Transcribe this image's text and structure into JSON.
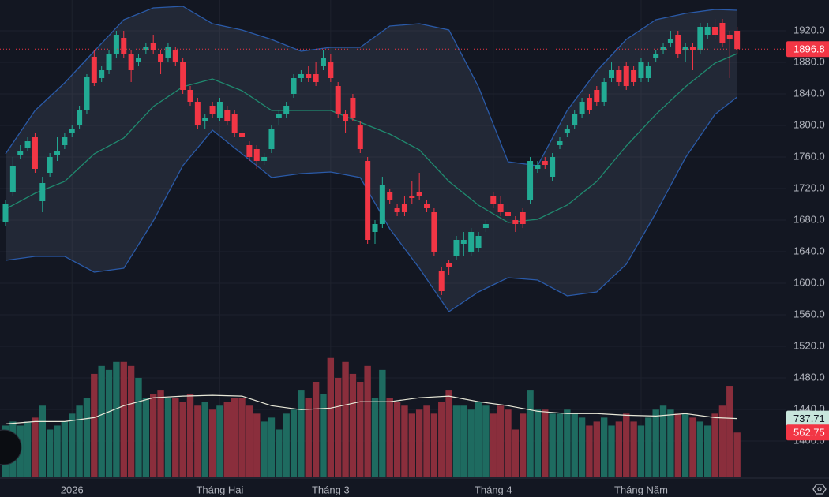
{
  "chart_data": {
    "type": "candlestick",
    "categories": [
      null,
      null,
      null,
      null,
      null,
      null,
      null,
      null,
      null,
      "2026",
      null,
      null,
      null,
      null,
      null,
      null,
      null,
      null,
      null,
      null,
      null,
      null,
      null,
      null,
      null,
      null,
      null,
      null,
      null,
      "Tháng Hai",
      null,
      null,
      null,
      null,
      null,
      null,
      null,
      null,
      null,
      null,
      null,
      null,
      null,
      null,
      "Tháng 3",
      null,
      null,
      null,
      null,
      null,
      null,
      null,
      null,
      null,
      null,
      null,
      null,
      null,
      null,
      null,
      null,
      null,
      null,
      null,
      null,
      null,
      "Tháng 4",
      null,
      null,
      null,
      null,
      null,
      null,
      null,
      null,
      null,
      null,
      null,
      null,
      null,
      null,
      null,
      null,
      null,
      null,
      null,
      "Tháng Năm",
      null,
      null,
      null,
      null,
      null,
      null,
      null,
      null,
      null,
      null,
      null,
      null,
      null
    ],
    "candles": [
      [
        1677,
        1705,
        1672,
        1701
      ],
      [
        1716,
        1760,
        1710,
        1749
      ],
      [
        1763,
        1775,
        1758,
        1768
      ],
      [
        1772,
        1785,
        1768,
        1780
      ],
      [
        1785,
        1790,
        1740,
        1745
      ],
      [
        1704,
        1735,
        1690,
        1727
      ],
      [
        1740,
        1765,
        1735,
        1760
      ],
      [
        1762,
        1785,
        1755,
        1768
      ],
      [
        1775,
        1790,
        1770,
        1785
      ],
      [
        1790,
        1800,
        1785,
        1795
      ],
      [
        1800,
        1825,
        1795,
        1820
      ],
      [
        1819,
        1865,
        1815,
        1861
      ],
      [
        1887,
        1895,
        1850,
        1854
      ],
      [
        1860,
        1875,
        1855,
        1870
      ],
      [
        1870,
        1895,
        1865,
        1890
      ],
      [
        1890,
        1920,
        1885,
        1915
      ],
      [
        1911,
        1920,
        1885,
        1891
      ],
      [
        1890,
        1895,
        1855,
        1870
      ],
      [
        1880,
        1890,
        1875,
        1885
      ],
      [
        1895,
        1905,
        1890,
        1900
      ],
      [
        1905,
        1915,
        1890,
        1895
      ],
      [
        1890,
        1895,
        1865,
        1880
      ],
      [
        1885,
        1905,
        1880,
        1900
      ],
      [
        1895,
        1900,
        1875,
        1880
      ],
      [
        1880,
        1885,
        1840,
        1845
      ],
      [
        1845,
        1850,
        1825,
        1830
      ],
      [
        1830,
        1835,
        1795,
        1800
      ],
      [
        1805,
        1815,
        1795,
        1810
      ],
      [
        1825,
        1830,
        1810,
        1815
      ],
      [
        1810,
        1835,
        1805,
        1830
      ],
      [
        1820,
        1825,
        1800,
        1805
      ],
      [
        1815,
        1820,
        1785,
        1790
      ],
      [
        1790,
        1795,
        1780,
        1785
      ],
      [
        1775,
        1780,
        1755,
        1760
      ],
      [
        1770,
        1775,
        1745,
        1755
      ],
      [
        1755,
        1765,
        1750,
        1760
      ],
      [
        1770,
        1800,
        1765,
        1795
      ],
      [
        1810,
        1820,
        1800,
        1815
      ],
      [
        1815,
        1830,
        1810,
        1825
      ],
      [
        1840,
        1865,
        1835,
        1860
      ],
      [
        1860,
        1870,
        1855,
        1865
      ],
      [
        1865,
        1875,
        1855,
        1860
      ],
      [
        1865,
        1880,
        1850,
        1855
      ],
      [
        1875,
        1895,
        1870,
        1885
      ],
      [
        1880,
        1890,
        1855,
        1860
      ],
      [
        1850,
        1855,
        1810,
        1815
      ],
      [
        1815,
        1820,
        1790,
        1805
      ],
      [
        1835,
        1840,
        1805,
        1810
      ],
      [
        1800,
        1805,
        1765,
        1770
      ],
      [
        1755,
        1760,
        1650,
        1655
      ],
      [
        1665,
        1680,
        1650,
        1675
      ],
      [
        1675,
        1735,
        1670,
        1725
      ],
      [
        1715,
        1720,
        1700,
        1705
      ],
      [
        1695,
        1700,
        1685,
        1690
      ],
      [
        1700,
        1710,
        1685,
        1690
      ],
      [
        1710,
        1730,
        1700,
        1708
      ],
      [
        1715,
        1740,
        1705,
        1710
      ],
      [
        1700,
        1705,
        1690,
        1695
      ],
      [
        1690,
        1695,
        1635,
        1640
      ],
      [
        1615,
        1620,
        1585,
        1590
      ],
      [
        1625,
        1630,
        1610,
        1620
      ],
      [
        1635,
        1660,
        1630,
        1655
      ],
      [
        1650,
        1665,
        1635,
        1655
      ],
      [
        1640,
        1670,
        1635,
        1665
      ],
      [
        1645,
        1665,
        1640,
        1660
      ],
      [
        1670,
        1680,
        1665,
        1675
      ],
      [
        1710,
        1715,
        1695,
        1700
      ],
      [
        1700,
        1710,
        1685,
        1690
      ],
      [
        1690,
        1700,
        1675,
        1685
      ],
      [
        1680,
        1685,
        1665,
        1675
      ],
      [
        1690,
        1695,
        1670,
        1675
      ],
      [
        1705,
        1760,
        1700,
        1755
      ],
      [
        1745,
        1755,
        1740,
        1750
      ],
      [
        1755,
        1760,
        1745,
        1750
      ],
      [
        1735,
        1765,
        1730,
        1760
      ],
      [
        1775,
        1785,
        1770,
        1780
      ],
      [
        1790,
        1800,
        1785,
        1795
      ],
      [
        1800,
        1820,
        1795,
        1815
      ],
      [
        1815,
        1835,
        1810,
        1830
      ],
      [
        1835,
        1840,
        1815,
        1820
      ],
      [
        1845,
        1850,
        1825,
        1830
      ],
      [
        1830,
        1860,
        1825,
        1855
      ],
      [
        1860,
        1880,
        1855,
        1870
      ],
      [
        1870,
        1875,
        1850,
        1855
      ],
      [
        1875,
        1880,
        1845,
        1850
      ],
      [
        1870,
        1875,
        1850,
        1855
      ],
      [
        1860,
        1885,
        1855,
        1880
      ],
      [
        1860,
        1880,
        1855,
        1875
      ],
      [
        1885,
        1895,
        1880,
        1890
      ],
      [
        1895,
        1905,
        1890,
        1900
      ],
      [
        1905,
        1920,
        1900,
        1910
      ],
      [
        1915,
        1920,
        1885,
        1890
      ],
      [
        1895,
        1905,
        1880,
        1900
      ],
      [
        1900,
        1905,
        1870,
        1895
      ],
      [
        1895,
        1930,
        1890,
        1925
      ],
      [
        1915,
        1930,
        1910,
        1925
      ],
      [
        1925,
        1935,
        1910,
        1915
      ],
      [
        1930,
        1935,
        1900,
        1905
      ],
      [
        1915,
        1920,
        1860,
        1910
      ],
      [
        1920,
        1925,
        1890,
        1896.8
      ]
    ],
    "up_color": "#22ab94",
    "down_color": "#f23645",
    "volume": {
      "values": [
        650,
        700,
        650,
        700,
        750,
        900,
        600,
        650,
        700,
        800,
        900,
        1000,
        1300,
        1400,
        1350,
        1450,
        1450,
        1400,
        1250,
        1000,
        1050,
        1100,
        1000,
        1000,
        950,
        1050,
        900,
        950,
        850,
        900,
        950,
        1000,
        1000,
        900,
        800,
        700,
        750,
        600,
        800,
        850,
        1100,
        1000,
        1200,
        1050,
        1500,
        1250,
        1450,
        1300,
        1200,
        1400,
        1000,
        1350,
        1000,
        950,
        900,
        800,
        850,
        900,
        800,
        950,
        1100,
        900,
        900,
        850,
        950,
        900,
        800,
        900,
        850,
        600,
        800,
        1100,
        850,
        850,
        800,
        800,
        850,
        800,
        750,
        650,
        700,
        750,
        650,
        700,
        800,
        700,
        650,
        750,
        850,
        900,
        850,
        800,
        800,
        750,
        700,
        650,
        800,
        900,
        1150,
        562.75
      ],
      "up_color": "#1e6b60",
      "down_color": "#8a2e3c"
    },
    "volume_ylim": [
      0,
      6000
    ],
    "volume_ma": {
      "x": [
        0,
        4,
        8,
        12,
        16,
        20,
        24,
        28,
        32,
        36,
        40,
        44,
        48,
        52,
        56,
        60,
        64,
        68,
        72,
        76,
        80,
        84,
        88,
        92,
        96,
        99
      ],
      "values": [
        670,
        700,
        700,
        750,
        900,
        1000,
        1020,
        1030,
        1020,
        900,
        850,
        870,
        950,
        950,
        1000,
        1020,
        950,
        900,
        830,
        800,
        800,
        780,
        770,
        800,
        750,
        737.71
      ],
      "color": "#e8e8d8"
    },
    "bands": {
      "x": [
        0,
        4,
        8,
        12,
        16,
        20,
        24,
        28,
        32,
        36,
        40,
        44,
        48,
        52,
        56,
        60,
        64,
        68,
        72,
        76,
        80,
        84,
        88,
        92,
        96,
        99
      ],
      "upper": [
        1764,
        1819,
        1854,
        1894,
        1934,
        1949,
        1951,
        1929,
        1921,
        1909,
        1894,
        1899,
        1899,
        1926,
        1929,
        1921,
        1849,
        1754,
        1749,
        1819,
        1869,
        1909,
        1934,
        1942,
        1947,
        1946
      ],
      "middle": [
        1694,
        1714,
        1729,
        1764,
        1784,
        1824,
        1849,
        1859,
        1844,
        1819,
        1819,
        1819,
        1804,
        1789,
        1769,
        1729,
        1699,
        1677,
        1681,
        1699,
        1729,
        1774,
        1814,
        1849,
        1879,
        1891
      ],
      "lower": [
        1629,
        1634,
        1634,
        1614,
        1619,
        1679,
        1749,
        1794,
        1764,
        1734,
        1739,
        1741,
        1734,
        1669,
        1619,
        1564,
        1589,
        1607,
        1604,
        1584,
        1589,
        1624,
        1689,
        1759,
        1814,
        1836
      ],
      "band_color": "#2a5aa8",
      "middle_color": "#1f8a6f",
      "fill": "rgba(120,130,160,0.16)"
    },
    "ylim": [
      1354,
      1959
    ],
    "yticks": [
      {
        "value": 1400,
        "label": "1400.0"
      },
      {
        "value": 1440,
        "label": "1440.0"
      },
      {
        "value": 1480,
        "label": "1480.0"
      },
      {
        "value": 1520,
        "label": "1520.0"
      },
      {
        "value": 1560,
        "label": "1560.0"
      },
      {
        "value": 1600,
        "label": "1600.0"
      },
      {
        "value": 1640,
        "label": "1640.0"
      },
      {
        "value": 1680,
        "label": "1680.0"
      },
      {
        "value": 1720,
        "label": "1720.0"
      },
      {
        "value": 1760,
        "label": "1760.0"
      },
      {
        "value": 1800,
        "label": "1800.0"
      },
      {
        "value": 1840,
        "label": "1840.0"
      },
      {
        "value": 1880,
        "label": "1880.0"
      },
      {
        "value": 1920,
        "label": "1920.0"
      }
    ],
    "grid": true
  }
}
